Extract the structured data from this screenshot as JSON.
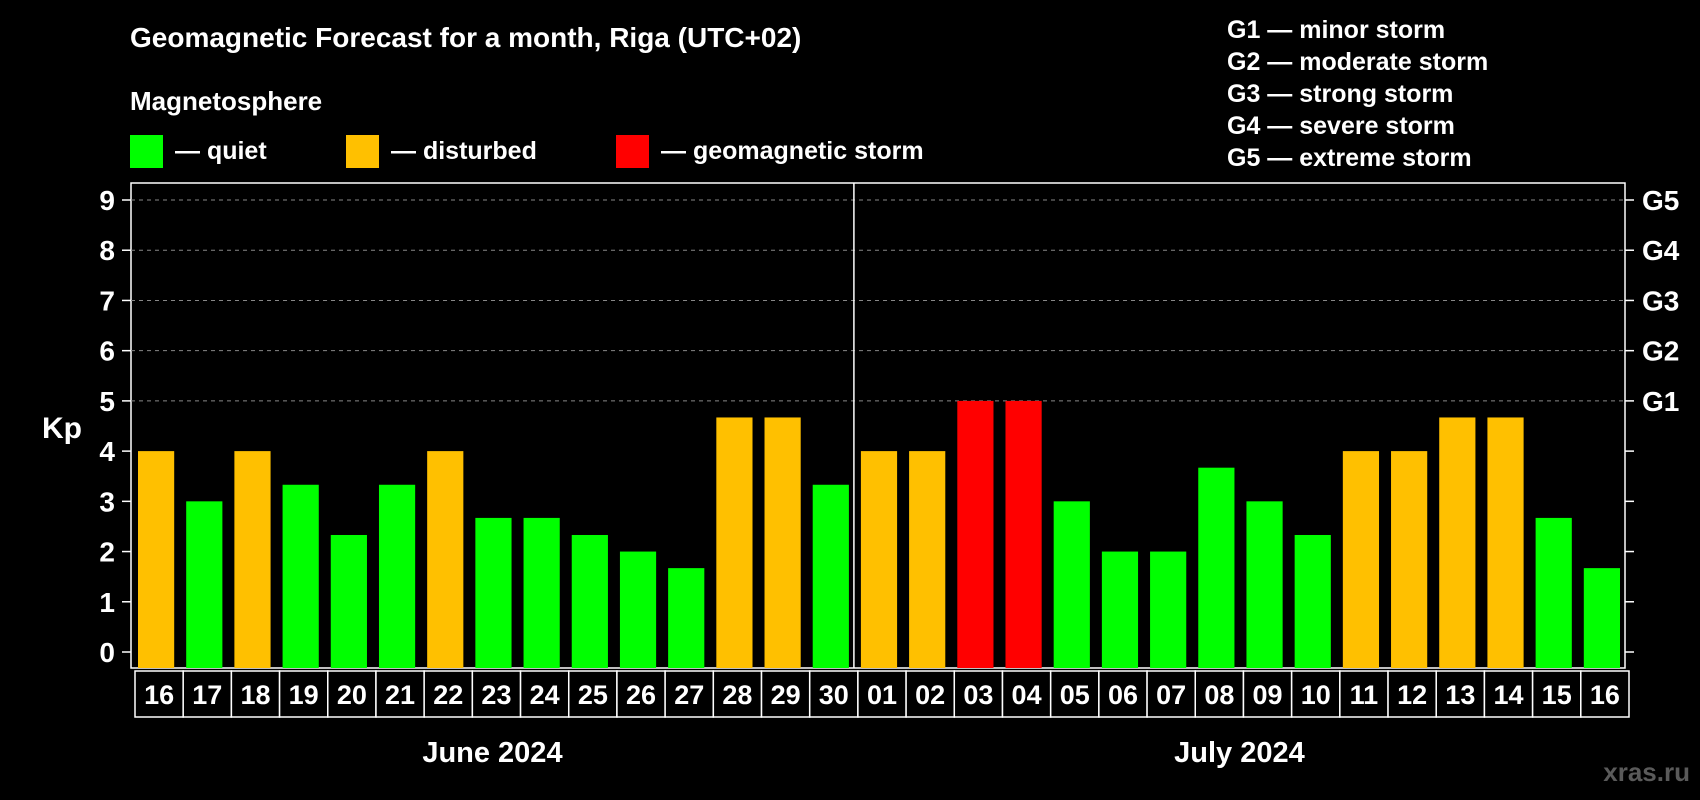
{
  "title": "Geomagnetic Forecast for a month, Riga (UTC+02)",
  "subtitle": "Magnetosphere",
  "legend": [
    {
      "label": "— quiet",
      "color": "#00ff00"
    },
    {
      "label": "— disturbed",
      "color": "#ffc000"
    },
    {
      "label": "— geomagnetic storm",
      "color": "#ff0000"
    }
  ],
  "storm_legend": [
    "G1 — minor storm",
    "G2 — moderate storm",
    "G3 — strong storm",
    "G4 — severe storm",
    "G5 — extreme storm"
  ],
  "watermark": "xras.ru",
  "chart_data": {
    "type": "bar",
    "title": "Geomagnetic Forecast for a month, Riga (UTC+02)",
    "ylabel": "Kp",
    "ylim": [
      0,
      9
    ],
    "yticks": [
      0,
      1,
      2,
      3,
      4,
      5,
      6,
      7,
      8,
      9
    ],
    "right_ticks": [
      {
        "value": 5,
        "label": "G1"
      },
      {
        "value": 6,
        "label": "G2"
      },
      {
        "value": 7,
        "label": "G3"
      },
      {
        "value": 8,
        "label": "G4"
      },
      {
        "value": 9,
        "label": "G5"
      }
    ],
    "categories": [
      "16",
      "17",
      "18",
      "19",
      "20",
      "21",
      "22",
      "23",
      "24",
      "25",
      "26",
      "27",
      "28",
      "29",
      "30",
      "01",
      "02",
      "03",
      "04",
      "05",
      "06",
      "07",
      "08",
      "09",
      "10",
      "11",
      "12",
      "13",
      "14",
      "15",
      "16"
    ],
    "values": [
      4,
      3,
      4,
      3.33,
      2.33,
      3.33,
      4,
      2.67,
      2.67,
      2.33,
      2,
      1.67,
      4.67,
      4.67,
      3.33,
      4,
      4,
      5,
      5,
      3,
      2,
      2,
      3.67,
      3,
      2.33,
      4,
      4,
      4.67,
      4.67,
      2.67,
      1.67
    ],
    "status": [
      "disturbed",
      "quiet",
      "disturbed",
      "quiet",
      "quiet",
      "quiet",
      "disturbed",
      "quiet",
      "quiet",
      "quiet",
      "quiet",
      "quiet",
      "disturbed",
      "disturbed",
      "quiet",
      "disturbed",
      "disturbed",
      "storm",
      "storm",
      "quiet",
      "quiet",
      "quiet",
      "quiet",
      "quiet",
      "quiet",
      "disturbed",
      "disturbed",
      "disturbed",
      "disturbed",
      "quiet",
      "quiet"
    ],
    "status_colors": {
      "quiet": "#00ff00",
      "disturbed": "#ffc000",
      "storm": "#ff0000"
    },
    "months": [
      {
        "label": "June 2024",
        "start": 0,
        "end": 14
      },
      {
        "label": "July 2024",
        "start": 15,
        "end": 30
      }
    ],
    "divider_after_index": 14,
    "grid_from": 5
  }
}
